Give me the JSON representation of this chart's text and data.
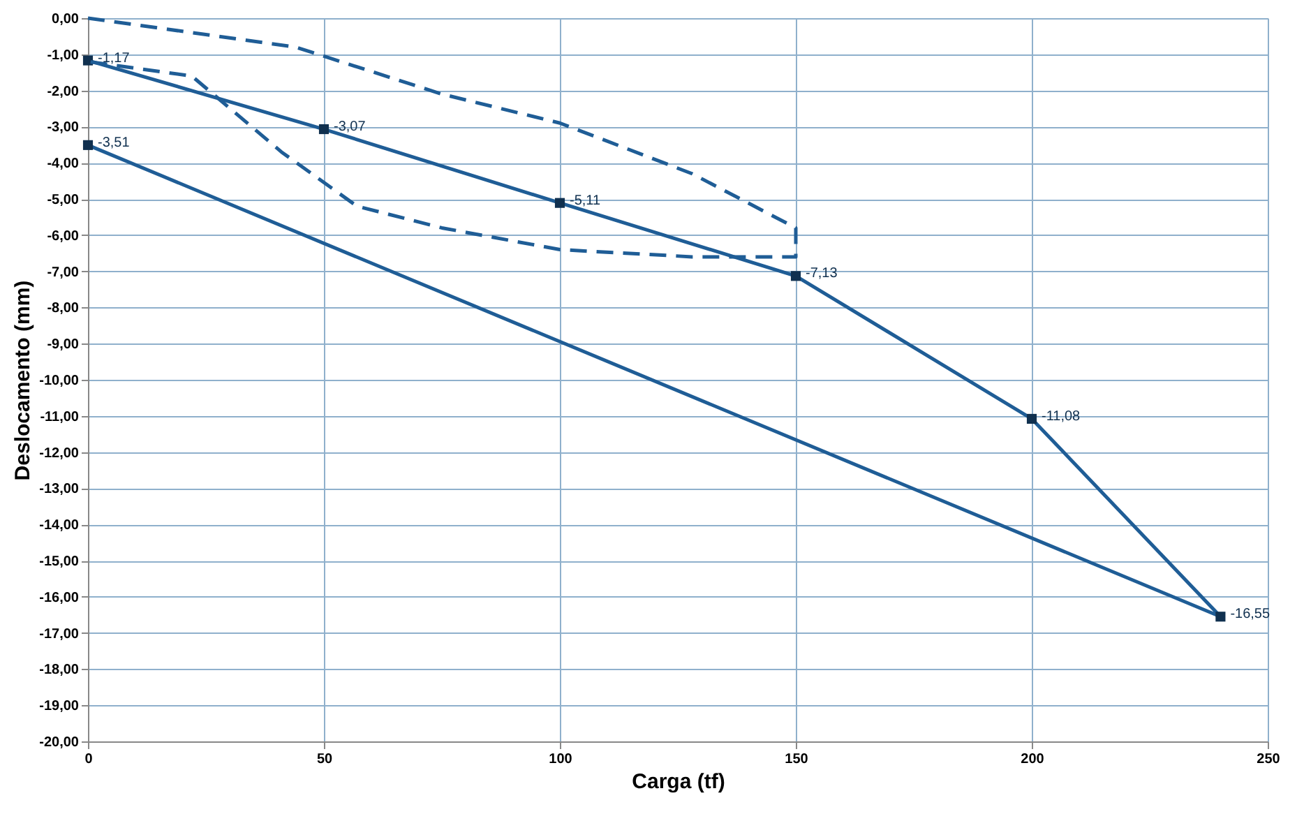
{
  "chart_data": {
    "type": "line",
    "xlabel": "Carga (tf)",
    "ylabel": "Deslocamento (mm)",
    "xlim": [
      0,
      250
    ],
    "ylim": [
      -20,
      0
    ],
    "xticks": [
      0,
      50,
      100,
      150,
      200,
      250
    ],
    "yticks": [
      {
        "value": 0,
        "label": "0,00"
      },
      {
        "value": -1,
        "label": "-1,00"
      },
      {
        "value": -2,
        "label": "-2,00"
      },
      {
        "value": -3,
        "label": "-3,00"
      },
      {
        "value": -4,
        "label": "-4,00"
      },
      {
        "value": -5,
        "label": "-5,00"
      },
      {
        "value": -6,
        "label": "-6,00"
      },
      {
        "value": -7,
        "label": "-7,00"
      },
      {
        "value": -8,
        "label": "-8,00"
      },
      {
        "value": -9,
        "label": "-9,00"
      },
      {
        "value": -10,
        "label": "-10,00"
      },
      {
        "value": -11,
        "label": "-11,00"
      },
      {
        "value": -12,
        "label": "-12,00"
      },
      {
        "value": -13,
        "label": "-13,00"
      },
      {
        "value": -14,
        "label": "-14,00"
      },
      {
        "value": -15,
        "label": "-15,00"
      },
      {
        "value": -16,
        "label": "-16,00"
      },
      {
        "value": -17,
        "label": "-17,00"
      },
      {
        "value": -18,
        "label": "-18,00"
      },
      {
        "value": -19,
        "label": "-19,00"
      },
      {
        "value": -20,
        "label": "-20,00"
      }
    ],
    "grid": true,
    "series": [
      {
        "color": "#1f5d96",
        "marker": "square",
        "line_style": "solid",
        "x": [
          0,
          50,
          100,
          150,
          200,
          240,
          0
        ],
        "values": [
          -1.17,
          -3.07,
          -5.11,
          -7.13,
          -11.08,
          -16.55,
          -3.51
        ],
        "value_labels": [
          "-1,17",
          "-3,07",
          "-5,11",
          "-7,13",
          "-11,08",
          "-16,55",
          "-3,51"
        ]
      },
      {
        "color": "#1f5d96",
        "marker": "none",
        "line_style": "dashed",
        "x": [
          0,
          44,
          75,
          100,
          128,
          150,
          150,
          128,
          100,
          75,
          57,
          41,
          22,
          0
        ],
        "values": [
          0,
          -0.8,
          -2.1,
          -2.9,
          -4.3,
          -5.8,
          -6.6,
          -6.6,
          -6.4,
          -5.8,
          -5.2,
          -3.7,
          -1.6,
          -1.2
        ]
      }
    ]
  }
}
